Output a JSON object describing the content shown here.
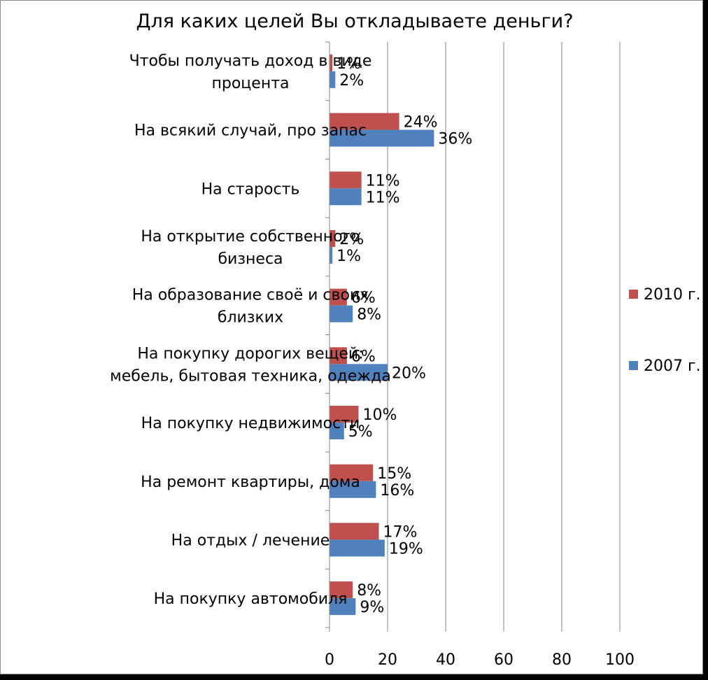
{
  "chart_data": {
    "type": "bar",
    "orientation": "horizontal",
    "title": "Для каких целей Вы откладываете деньги?",
    "categories": [
      "Чтобы получать доход в виде процента",
      "На всякий случай, про запас",
      "На старость",
      "На открытие собственного бизнеса",
      "На образование  своё и своих близких",
      "На покупку дорогих вещей: мебель, бытовая техника, одежда",
      "На покупку  недвижимости",
      "На ремонт квартиры, дома",
      "На отдых  / лечение",
      "На покупку  автомобиля"
    ],
    "category_lines": [
      [
        "Чтобы получать доход в виде",
        "процента"
      ],
      [
        "На всякий случай, про запас"
      ],
      [
        "На старость"
      ],
      [
        "На открытие  собственного",
        "бизнеса"
      ],
      [
        "На образование  своё и своих",
        "близких"
      ],
      [
        "На покупку дорогих вещей:",
        "мебель, бытовая техника, одежда"
      ],
      [
        "На покупку  недвижимости"
      ],
      [
        "На ремонт квартиры, дома"
      ],
      [
        "На отдых  / лечение"
      ],
      [
        "На покупку  автомобиля"
      ]
    ],
    "series": [
      {
        "name": "2010 г.",
        "color": "#c0504d",
        "values": [
          1,
          24,
          11,
          2,
          6,
          6,
          10,
          15,
          17,
          8
        ],
        "labels": [
          "1%",
          "24%",
          "11%",
          "2%",
          "6%",
          "6%",
          "10%",
          "15%",
          "17%",
          "8%"
        ]
      },
      {
        "name": "2007 г.",
        "color": "#4f81bd",
        "values": [
          2,
          36,
          11,
          1,
          8,
          20,
          5,
          16,
          19,
          9
        ],
        "labels": [
          "2%",
          "36%",
          "11%",
          "1%",
          "8%",
          "20%",
          "5%",
          "16%",
          "19%",
          "9%"
        ]
      }
    ],
    "xlim": [
      0,
      100
    ],
    "xticks": [
      0,
      20,
      40,
      60,
      80,
      100
    ],
    "grid": "vertical",
    "legend_position": "right"
  }
}
